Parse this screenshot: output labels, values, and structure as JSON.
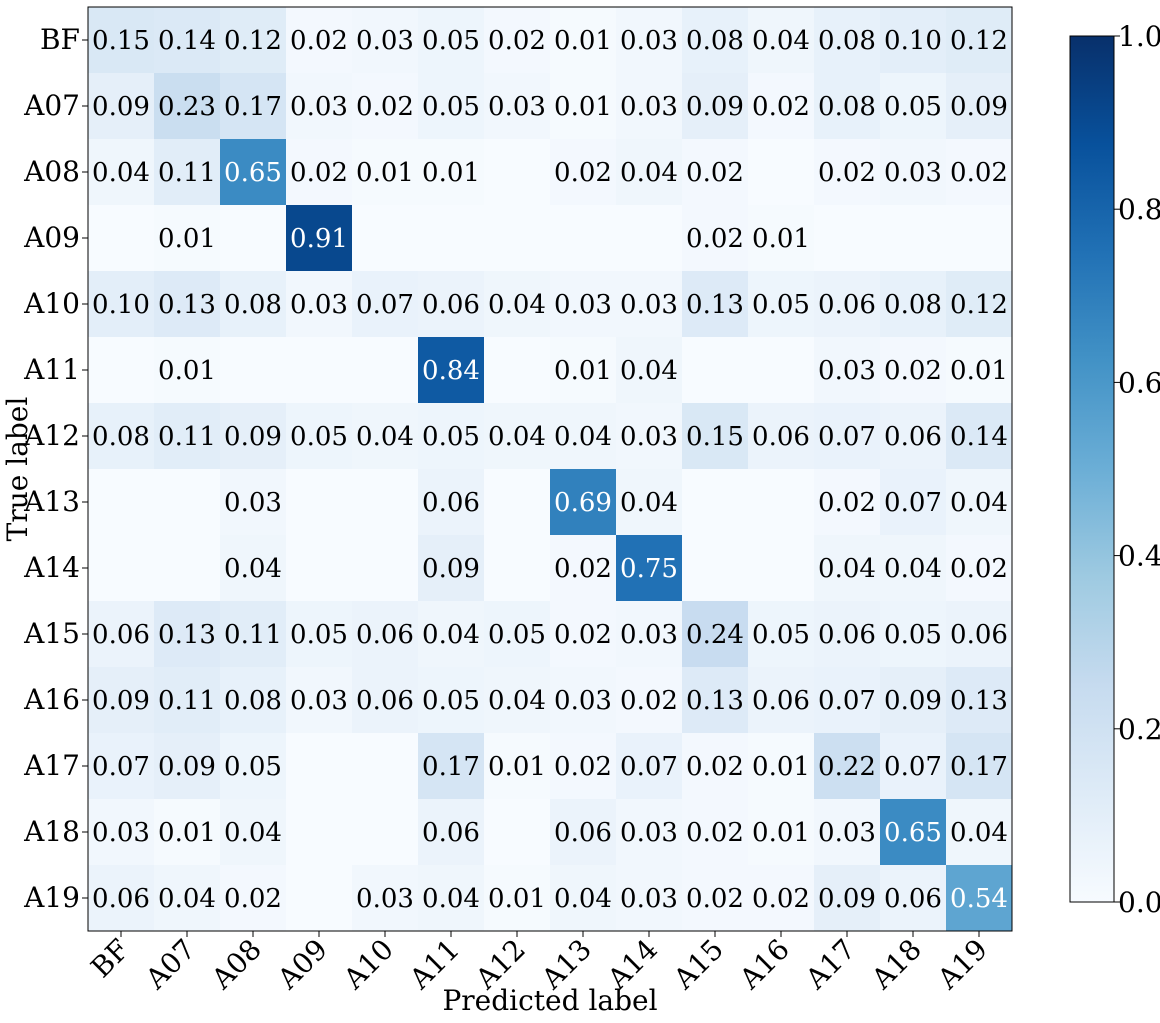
{
  "chart_data": {
    "type": "heatmap",
    "xlabel": "Predicted label",
    "ylabel": "True label",
    "x_categories": [
      "BF",
      "A07",
      "A08",
      "A09",
      "A10",
      "A11",
      "A12",
      "A13",
      "A14",
      "A15",
      "A16",
      "A17",
      "A18",
      "A19"
    ],
    "y_categories": [
      "BF",
      "A07",
      "A08",
      "A09",
      "A10",
      "A11",
      "A12",
      "A13",
      "A14",
      "A15",
      "A16",
      "A17",
      "A18",
      "A19"
    ],
    "values": [
      [
        0.15,
        0.14,
        0.12,
        0.02,
        0.03,
        0.05,
        0.02,
        0.01,
        0.03,
        0.08,
        0.04,
        0.08,
        0.1,
        0.12
      ],
      [
        0.09,
        0.23,
        0.17,
        0.03,
        0.02,
        0.05,
        0.03,
        0.01,
        0.03,
        0.09,
        0.02,
        0.08,
        0.05,
        0.09
      ],
      [
        0.04,
        0.11,
        0.65,
        0.02,
        0.01,
        0.01,
        0.0,
        0.02,
        0.04,
        0.02,
        0.0,
        0.02,
        0.03,
        0.02
      ],
      [
        0.0,
        0.01,
        0.0,
        0.91,
        0.0,
        0.0,
        0.0,
        0.0,
        0.0,
        0.02,
        0.01,
        0.0,
        0.0,
        0.0
      ],
      [
        0.1,
        0.13,
        0.08,
        0.03,
        0.07,
        0.06,
        0.04,
        0.03,
        0.03,
        0.13,
        0.05,
        0.06,
        0.08,
        0.12
      ],
      [
        0.0,
        0.01,
        0.0,
        0.0,
        0.0,
        0.84,
        0.0,
        0.01,
        0.04,
        0.0,
        0.0,
        0.03,
        0.02,
        0.01
      ],
      [
        0.08,
        0.11,
        0.09,
        0.05,
        0.04,
        0.05,
        0.04,
        0.04,
        0.03,
        0.15,
        0.06,
        0.07,
        0.06,
        0.14
      ],
      [
        0.0,
        0.0,
        0.03,
        0.0,
        0.0,
        0.06,
        0.0,
        0.69,
        0.04,
        0.0,
        0.0,
        0.02,
        0.07,
        0.04
      ],
      [
        0.0,
        0.0,
        0.04,
        0.0,
        0.0,
        0.09,
        0.0,
        0.02,
        0.75,
        0.0,
        0.0,
        0.04,
        0.04,
        0.02
      ],
      [
        0.06,
        0.13,
        0.11,
        0.05,
        0.06,
        0.04,
        0.05,
        0.02,
        0.03,
        0.24,
        0.05,
        0.06,
        0.05,
        0.06
      ],
      [
        0.09,
        0.11,
        0.08,
        0.03,
        0.06,
        0.05,
        0.04,
        0.03,
        0.02,
        0.13,
        0.06,
        0.07,
        0.09,
        0.13
      ],
      [
        0.07,
        0.09,
        0.05,
        0.0,
        0.0,
        0.17,
        0.01,
        0.02,
        0.07,
        0.02,
        0.01,
        0.22,
        0.07,
        0.17
      ],
      [
        0.03,
        0.01,
        0.04,
        0.0,
        0.0,
        0.06,
        0.0,
        0.06,
        0.03,
        0.02,
        0.01,
        0.03,
        0.65,
        0.04
      ],
      [
        0.06,
        0.04,
        0.02,
        0.0,
        0.03,
        0.04,
        0.01,
        0.04,
        0.03,
        0.02,
        0.02,
        0.09,
        0.06,
        0.54
      ]
    ],
    "colorscale": "Blues",
    "color_range": [
      0.0,
      1.0
    ],
    "colorbar_ticks": [
      0.0,
      0.2,
      0.4,
      0.6,
      0.8,
      1.0
    ],
    "colorbar_tick_labels": [
      "0.0",
      "0.2",
      "0.4",
      "0.6",
      "0.8",
      "1.0"
    ],
    "hide_zero_labels": true,
    "value_format_decimals": 2,
    "grid": false
  }
}
